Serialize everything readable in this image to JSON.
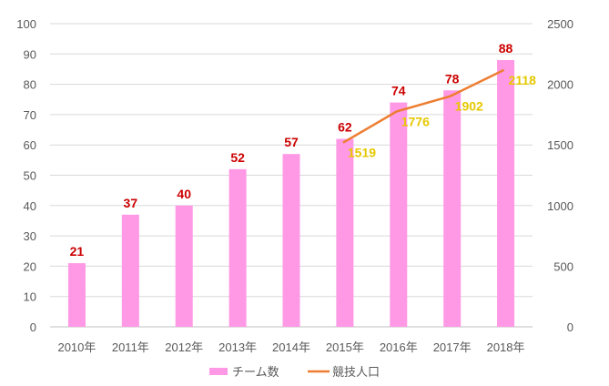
{
  "chart_data": {
    "type": "bar",
    "title": "",
    "categories": [
      "2010年",
      "2011年",
      "2012年",
      "2013年",
      "2014年",
      "2015年",
      "2016年",
      "2017年",
      "2018年"
    ],
    "series": [
      {
        "name": "チーム数",
        "type": "bar",
        "axis": "left",
        "color": "#ff99e6",
        "label_color": "#cc0000",
        "values": [
          21,
          37,
          40,
          52,
          57,
          62,
          74,
          78,
          88
        ]
      },
      {
        "name": "競技人口",
        "type": "line",
        "axis": "right",
        "color": "#ed7d31",
        "label_color": "#e6c800",
        "values": [
          null,
          null,
          null,
          null,
          null,
          1519,
          1776,
          1902,
          2118
        ]
      }
    ],
    "left_axis": {
      "ylim": [
        0,
        100
      ],
      "ticks": [
        "0",
        "10",
        "20",
        "30",
        "40",
        "50",
        "60",
        "70",
        "80",
        "90",
        "100"
      ]
    },
    "right_axis": {
      "ylim": [
        0,
        2500
      ],
      "ticks": [
        "0",
        "500",
        "1000",
        "1500",
        "2000",
        "2500"
      ]
    },
    "grid": true,
    "legend": "bottom"
  }
}
